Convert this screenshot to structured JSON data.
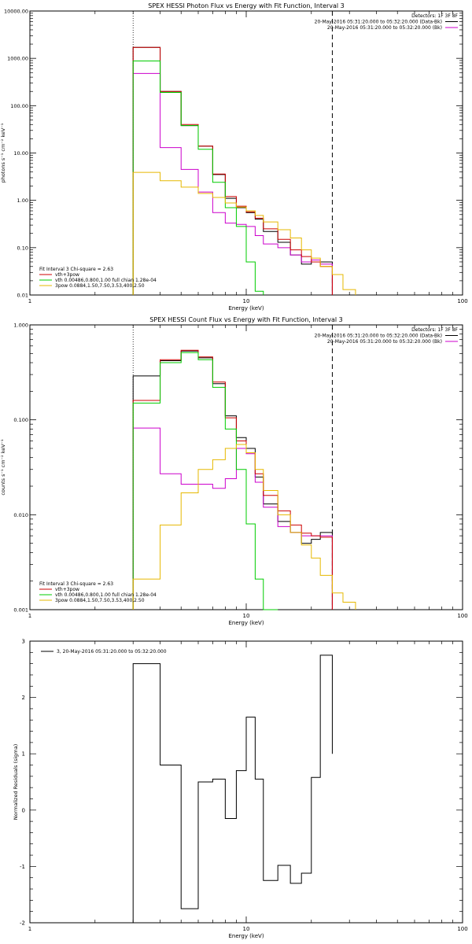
{
  "chart_data": [
    {
      "type": "line",
      "title": "SPEX HESSI Photon Flux vs Energy with Fit Function, Interval 3",
      "xlabel": "Energy (keV)",
      "ylabel": "photons s⁻¹ cm⁻² keV⁻¹",
      "xscale": "log",
      "yscale": "log",
      "xlim": [
        1,
        100
      ],
      "ylim": [
        0.01,
        10000
      ],
      "xticks": [
        "1",
        "10",
        "100"
      ],
      "yticks": [
        "0.01",
        "0.10",
        "1.00",
        "10.00",
        "100.00",
        "1000.00",
        "10000.00"
      ],
      "legend_top_right": [
        "Detectors: 1F 3F 8F",
        "20-May-2016 05:31:20.000 to 05:32:20.000 (Data-Bk)",
        "20-May-2016 05:31:20.000 to 05:32:20.000 (Bk)"
      ],
      "fit_text": [
        "Fit Interval 3   Chi-square = 2.63",
        "vth+3pow",
        "vth 0.00486,0.800,1.00  full chian 1.28e-04",
        "3pow 0.0884,1.50,7.50,3.53,400,2.50"
      ],
      "vlines": [
        3,
        25
      ],
      "edges": [
        3,
        4,
        5,
        6,
        7,
        8,
        9,
        10,
        11,
        12,
        14,
        16,
        18,
        20,
        22,
        25,
        28,
        32
      ],
      "series": [
        {
          "name": "Data-Bk",
          "color": "#000000",
          "values": [
            1700,
            200,
            38,
            14,
            3.5,
            1.1,
            0.7,
            0.55,
            0.4,
            0.22,
            0.13,
            0.07,
            0.045,
            0.05,
            0.05,
            null,
            null
          ]
        },
        {
          "name": "Bk",
          "color": "#cc00cc",
          "values": [
            480,
            13,
            4.5,
            1.5,
            0.55,
            0.33,
            0.31,
            0.28,
            0.18,
            0.12,
            0.1,
            0.07,
            0.05,
            0.055,
            0.045,
            null,
            null
          ]
        },
        {
          "name": "vth+3pow",
          "color": "#cc0000",
          "values": [
            1700,
            200,
            40,
            14,
            3.6,
            1.2,
            0.75,
            0.57,
            0.42,
            0.25,
            0.15,
            0.09,
            0.065,
            0.05,
            0.04,
            null,
            null
          ]
        },
        {
          "name": "vth",
          "color": "#00cc00",
          "values": [
            880,
            190,
            38,
            12,
            2.4,
            0.7,
            0.28,
            0.05,
            0.012,
            null,
            null,
            null,
            null,
            null,
            null,
            null,
            null
          ]
        },
        {
          "name": "3pow",
          "color": "#e6b800",
          "values": [
            3.9,
            2.6,
            1.9,
            1.4,
            1.15,
            0.88,
            0.72,
            0.6,
            0.48,
            0.35,
            0.24,
            0.16,
            0.09,
            0.06,
            0.04,
            0.027,
            0.013
          ]
        }
      ]
    },
    {
      "type": "line",
      "title": "SPEX HESSI Count Flux vs Energy with Fit Function, Interval 3",
      "xlabel": "Energy (keV)",
      "ylabel": "counts s⁻¹ cm⁻² keV⁻¹",
      "xscale": "log",
      "yscale": "log",
      "xlim": [
        1,
        100
      ],
      "ylim": [
        0.001,
        1
      ],
      "xticks": [
        "1",
        "10",
        "100"
      ],
      "yticks": [
        "0.001",
        "0.010",
        "0.100",
        "1.000"
      ],
      "legend_top_right": [
        "Detectors: 1F 3F 8F",
        "20-May-2016 05:31:20.000 to 05:32:20.000 (Data-Bk)",
        "20-May-2016 05:31:20.000 to 05:32:20.000 (Bk)"
      ],
      "fit_text": [
        "Fit Interval 3   Chi-square = 2.63",
        "vth+3pow",
        "vth 0.00486,0.800,1.00  full chian 1.28e-04",
        "3pow 0.0884,1.50,7.50,3.53,400,2.50"
      ],
      "vlines": [
        3,
        25
      ],
      "edges": [
        3,
        4,
        5,
        6,
        7,
        8,
        9,
        10,
        11,
        12,
        14,
        16,
        18,
        20,
        22,
        25,
        28,
        32
      ],
      "series": [
        {
          "name": "Data-Bk",
          "color": "#000000",
          "values": [
            0.29,
            0.42,
            0.53,
            0.45,
            0.24,
            0.11,
            0.065,
            0.05,
            0.025,
            0.013,
            0.0085,
            0.0065,
            0.005,
            0.0055,
            0.0065,
            null,
            null
          ]
        },
        {
          "name": "Bk",
          "color": "#cc00cc",
          "values": [
            0.082,
            0.027,
            0.021,
            0.021,
            0.019,
            0.024,
            0.05,
            0.044,
            0.022,
            0.012,
            0.0075,
            0.0065,
            0.006,
            0.006,
            0.006,
            null,
            null
          ]
        },
        {
          "name": "vth+3pow",
          "color": "#cc0000",
          "values": [
            0.16,
            0.43,
            0.54,
            0.46,
            0.25,
            0.105,
            0.06,
            0.045,
            0.027,
            0.016,
            0.011,
            0.0078,
            0.0064,
            0.006,
            0.0058,
            null,
            null
          ]
        },
        {
          "name": "vth",
          "color": "#00cc00",
          "values": [
            0.15,
            0.4,
            0.51,
            0.43,
            0.22,
            0.08,
            0.03,
            0.008,
            0.0021,
            0.001,
            null,
            null,
            null,
            null,
            null,
            null,
            null
          ]
        },
        {
          "name": "3pow",
          "color": "#e6b800",
          "values": [
            0.0021,
            0.0078,
            0.017,
            0.03,
            0.038,
            0.05,
            0.055,
            0.045,
            0.03,
            0.018,
            0.01,
            0.0065,
            0.0048,
            0.0035,
            0.0023,
            0.0015,
            0.0012
          ]
        }
      ]
    },
    {
      "type": "line",
      "xlabel": "Energy (keV)",
      "ylabel": "Normalized Residuals (sigma)",
      "xscale": "log",
      "xlim": [
        1,
        100
      ],
      "ylim": [
        -2,
        3
      ],
      "xticks": [
        "1",
        "10",
        "100"
      ],
      "yticks": [
        "-2",
        "-1",
        "0",
        "1",
        "2",
        "3"
      ],
      "legend": "3, 20-May-2016 05:31:20.000 to 05:32:20.000",
      "edges": [
        3,
        4,
        5,
        6,
        7,
        8,
        9,
        10,
        11,
        12,
        14,
        16,
        18,
        20,
        22,
        25
      ],
      "values": [
        2.6,
        0.8,
        -1.75,
        0.5,
        0.55,
        -0.15,
        0.7,
        1.65,
        0.55,
        -1.25,
        -0.98,
        -1.3,
        -1.12,
        0.58,
        2.75,
        1.0
      ]
    }
  ]
}
